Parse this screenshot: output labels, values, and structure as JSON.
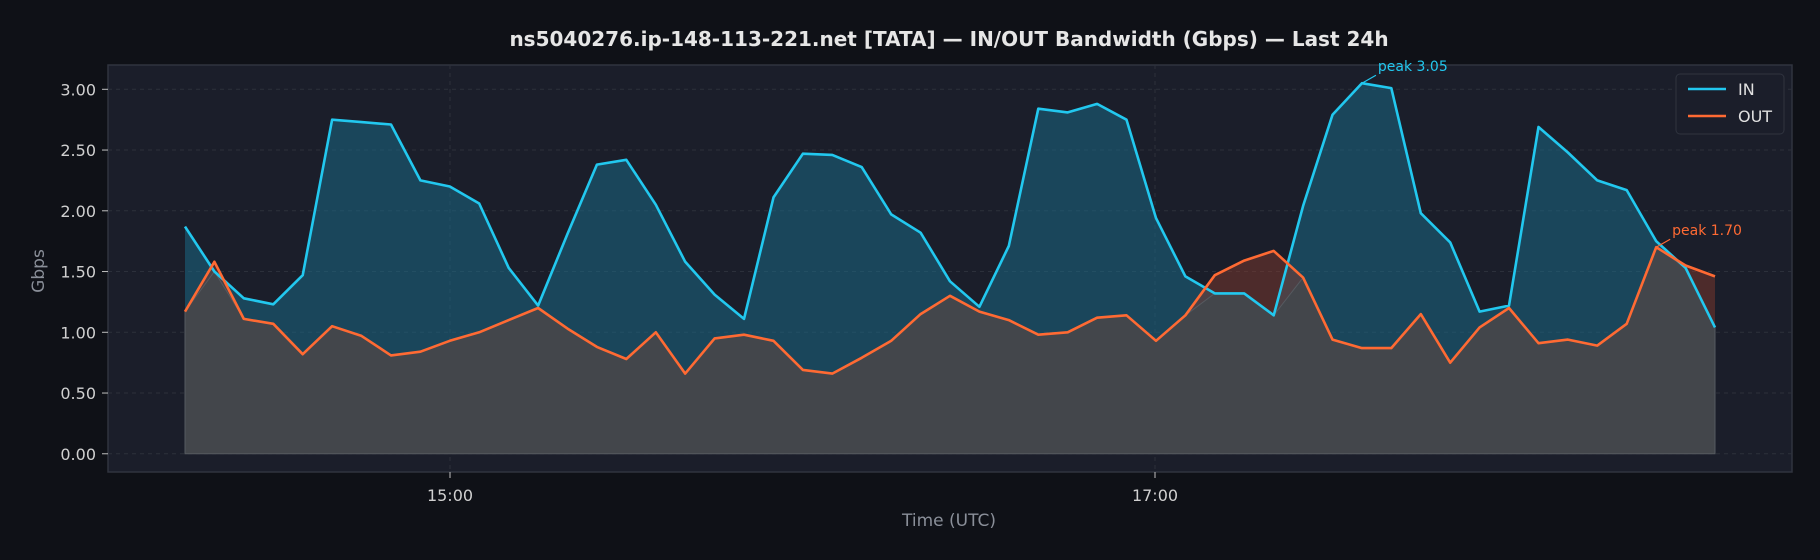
{
  "chart_data": {
    "type": "area",
    "title": "ns5040276.ip-148-113-221.net [TATA] — IN/OUT Bandwidth (Gbps) — Last 24h",
    "xlabel": "Time (UTC)",
    "ylabel": "Gbps",
    "x_ticks": [
      "15:00",
      "17:00"
    ],
    "y_ticks": [
      "0.00",
      "0.50",
      "1.00",
      "1.50",
      "2.00",
      "2.50",
      "3.00"
    ],
    "ylim": [
      -0.15,
      3.2
    ],
    "grid": true,
    "legend_position": "top-right",
    "series": [
      {
        "name": "IN",
        "color": "#22c8ef",
        "values": [
          1.87,
          1.5,
          1.28,
          1.23,
          1.47,
          2.75,
          2.73,
          2.71,
          2.25,
          2.2,
          2.06,
          1.53,
          1.22,
          1.81,
          2.38,
          2.42,
          2.05,
          1.58,
          1.31,
          1.11,
          2.11,
          2.47,
          2.46,
          2.36,
          1.97,
          1.82,
          1.42,
          1.21,
          1.71,
          2.84,
          2.81,
          2.88,
          2.75,
          1.94,
          1.46,
          1.32,
          1.32,
          1.14,
          2.04,
          2.79,
          3.05,
          3.01,
          1.98,
          1.74,
          1.17,
          1.22,
          2.69,
          2.48,
          2.25,
          2.17,
          1.75,
          1.53,
          1.04
        ]
      },
      {
        "name": "OUT",
        "color": "#ff6a33",
        "values": [
          1.17,
          1.58,
          1.11,
          1.07,
          0.82,
          1.05,
          0.97,
          0.81,
          0.84,
          0.93,
          1.0,
          1.1,
          1.2,
          1.03,
          0.88,
          0.78,
          1.0,
          0.66,
          0.95,
          0.98,
          0.93,
          0.69,
          0.66,
          0.79,
          0.93,
          1.15,
          1.3,
          1.17,
          1.1,
          0.98,
          1.0,
          1.12,
          1.14,
          0.93,
          1.14,
          1.47,
          1.59,
          1.67,
          1.45,
          0.94,
          0.87,
          0.87,
          1.15,
          0.75,
          1.04,
          1.2,
          0.91,
          0.94,
          0.89,
          1.07,
          1.7,
          1.55,
          1.46
        ]
      }
    ],
    "annotations": [
      {
        "text": "peak 3.05",
        "series": "IN",
        "index": 40
      },
      {
        "text": "peak 1.70",
        "series": "OUT",
        "index": 50
      }
    ]
  }
}
